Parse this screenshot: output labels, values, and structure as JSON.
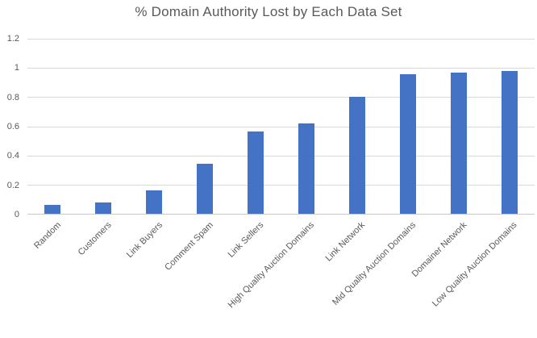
{
  "chart_data": {
    "type": "bar",
    "title": "% Domain Authority Lost by Each Data Set",
    "categories": [
      "Random",
      "Customers",
      "Link Buyers",
      "Comment Spam",
      "Link Sellers",
      "High Quality Auction Domains",
      "Link Network",
      "Mid Quality Auction Domains",
      "Domainer Network",
      "Low Quality Auction Domains"
    ],
    "values": [
      0.06,
      0.075,
      0.16,
      0.34,
      0.56,
      0.615,
      0.8,
      0.95,
      0.965,
      0.975
    ],
    "xlabel": "",
    "ylabel": "",
    "ylim": [
      0,
      1.2
    ],
    "yticks": [
      {
        "label": "0",
        "value": 0
      },
      {
        "label": "0.2",
        "value": 0.2
      },
      {
        "label": "0.4",
        "value": 0.4
      },
      {
        "label": "0.6",
        "value": 0.6
      },
      {
        "label": "0.8",
        "value": 0.8
      },
      {
        "label": "1",
        "value": 1
      },
      {
        "label": "1.2",
        "value": 1.2
      }
    ],
    "grid": true,
    "legend": false,
    "colors": {
      "bar": "#4472C4",
      "gridline": "#D9D9D9",
      "axis_line": "#C9C9C9",
      "text": "#595959"
    }
  }
}
